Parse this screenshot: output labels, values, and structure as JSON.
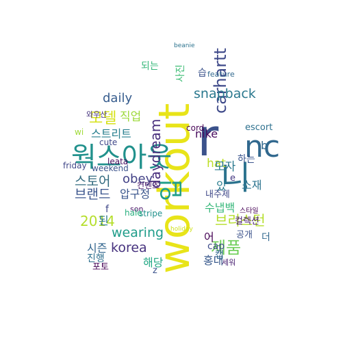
{
  "words": [
    {
      "text": "workout",
      "color": "#e8e419"
    },
    {
      "text": "r",
      "color": "#3b528b"
    },
    {
      "text": "nc",
      "color": "#31688e"
    },
    {
      "text": "니",
      "color": "#2c738e"
    },
    {
      "text": "웍스아웃",
      "color": "#21918c"
    },
    {
      "text": "입",
      "color": "#1f9e89"
    },
    {
      "text": "모델",
      "color": "#d6e21a"
    },
    {
      "text": "carhartt",
      "color": "#3e4989"
    },
    {
      "text": "snapback",
      "color": "#2a788e"
    },
    {
      "text": "daydream",
      "color": "#472d7b"
    },
    {
      "text": "daily",
      "color": "#365c8d"
    },
    {
      "text": "스트리트",
      "color": "#277f8e"
    },
    {
      "text": "제품",
      "color": "#6ece58"
    },
    {
      "text": "브리스턴",
      "color": "#b5de2b"
    },
    {
      "text": "2014",
      "color": "#b5de2b"
    },
    {
      "text": "wearing",
      "color": "#1e9c89"
    },
    {
      "text": "korea",
      "color": "#46327e"
    },
    {
      "text": "스토어",
      "color": "#30697e"
    },
    {
      "text": "브랜드",
      "color": "#3a548c"
    },
    {
      "text": "obey",
      "color": "#424186"
    },
    {
      "text": "hat",
      "color": "#bddf26"
    },
    {
      "text": "모자",
      "color": "#2a788e"
    },
    {
      "text": "nike",
      "color": "#46085c"
    },
    {
      "text": "소재",
      "color": "#2c738e"
    },
    {
      "text": "시즌",
      "color": "#32658e"
    },
    {
      "text": "해당",
      "color": "#22a884"
    },
    {
      "text": "직업",
      "color": "#9dd93b"
    },
    {
      "text": "사진",
      "color": "#3dbc74"
    },
    {
      "text": "압구정",
      "color": "#39558c"
    },
    {
      "text": "된",
      "color": "#2a788e"
    },
    {
      "text": "홍대",
      "color": "#38598c"
    },
    {
      "text": "공개",
      "color": "#3b528b"
    },
    {
      "text": "컬렉션",
      "color": "#481c6e"
    },
    {
      "text": "내주제",
      "color": "#3f4788"
    },
    {
      "text": "수냅백",
      "color": "#35b779"
    },
    {
      "text": "하는",
      "color": "#3a548c"
    },
    {
      "text": "되는",
      "color": "#35b779"
    },
    {
      "text": "습",
      "color": "#3b528b"
    },
    {
      "text": "cap",
      "color": "#3e4c8a"
    },
    {
      "text": "캡",
      "color": "#31688e"
    },
    {
      "text": "진행",
      "color": "#2e6f8e"
    },
    {
      "text": "포토",
      "color": "#440154"
    },
    {
      "text": "escort",
      "color": "#2d708e"
    },
    {
      "text": "cute",
      "color": "#3f4788"
    },
    {
      "text": "leata",
      "color": "#46085c"
    },
    {
      "text": "weekend",
      "color": "#3b528b"
    },
    {
      "text": "friday",
      "color": "#404688"
    },
    {
      "text": "stripe",
      "color": "#21918c"
    },
    {
      "text": "cord",
      "color": "#440154"
    },
    {
      "text": "son",
      "color": "#481467"
    },
    {
      "text": "hale",
      "color": "#2ab07f"
    },
    {
      "text": "컨텐츠",
      "color": "#48186a"
    },
    {
      "text": "어",
      "color": "#440154"
    },
    {
      "text": "더",
      "color": "#31688e"
    },
    {
      "text": "있",
      "color": "#287c8e"
    },
    {
      "text": "b",
      "color": "#31688e"
    },
    {
      "text": "wi",
      "color": "#a0da39"
    },
    {
      "text": "f",
      "color": "#3f4788"
    },
    {
      "text": "z",
      "color": "#3b528b"
    },
    {
      "text": "e",
      "color": "#453781"
    },
    {
      "text": "세워",
      "color": "#481f70"
    },
    {
      "text": "와우산",
      "color": "#46337e"
    },
    {
      "text": "feature",
      "color": "#31688e"
    },
    {
      "text": "스타일",
      "color": "#440154"
    },
    {
      "text": "holiday",
      "color": "#cfe11c"
    },
    {
      "text": "beanie",
      "color": "#2c738e"
    }
  ]
}
